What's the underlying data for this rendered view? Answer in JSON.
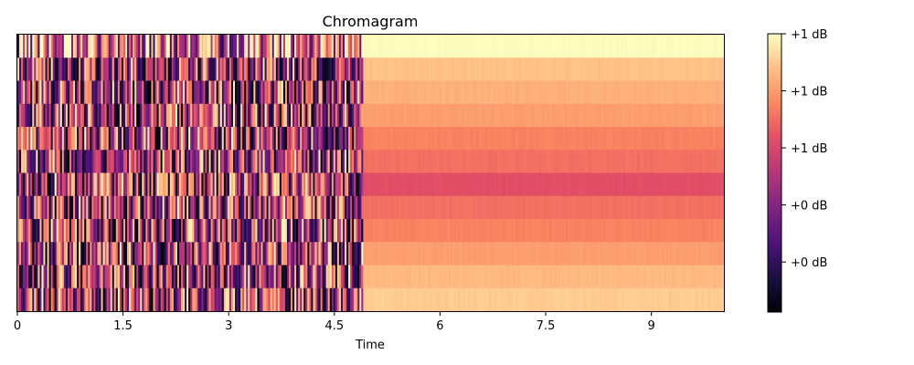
{
  "chart_data": {
    "type": "heatmap",
    "title": "Chromagram",
    "xlabel": "Time",
    "ylabel": "",
    "xlim": [
      0,
      10.03
    ],
    "x_ticks": [
      {
        "value": 0,
        "label": "0"
      },
      {
        "value": 1.5,
        "label": "1.5"
      },
      {
        "value": 3,
        "label": "3"
      },
      {
        "value": 4.5,
        "label": "4.5"
      },
      {
        "value": 6,
        "label": "6"
      },
      {
        "value": 7.5,
        "label": "7.5"
      },
      {
        "value": 9,
        "label": "9"
      }
    ],
    "n_chroma_bins": 12,
    "colormap": "magma",
    "colorbar": {
      "tick_labels": [
        "+1 dB",
        "+1 dB",
        "+1 dB",
        "+0 dB",
        "+0 dB"
      ],
      "tick_levels": [
        1.0,
        0.795,
        0.59,
        0.385,
        0.18
      ],
      "range": [
        0,
        1
      ]
    },
    "sustained_segment": {
      "start_time": 4.9,
      "end_time": 10.03,
      "levels_top_to_bottom": [
        1.0,
        0.88,
        0.84,
        0.8,
        0.74,
        0.7,
        0.62,
        0.7,
        0.74,
        0.8,
        0.86,
        0.9
      ]
    },
    "noisy_segment": {
      "start_time": 0,
      "end_time": 4.9,
      "approx_mean_level": 0.45
    },
    "grid": false
  }
}
